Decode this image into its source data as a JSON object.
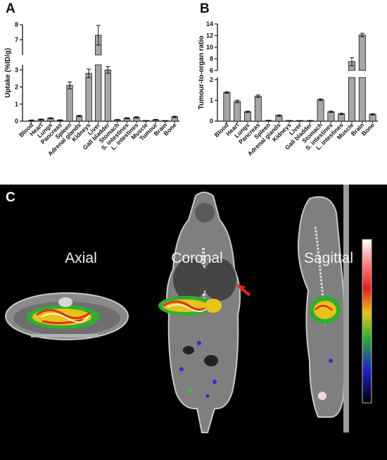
{
  "panels": {
    "a": "A",
    "b": "B",
    "c": "C"
  },
  "views": {
    "axial": "Axial",
    "coronal": "Coronal",
    "sagittal": "Sagittal"
  },
  "chart_data": [
    {
      "type": "bar",
      "panel": "A",
      "title": "",
      "xlabel": "",
      "ylabel": "Uptake (%ID/g)",
      "categories": [
        "Blood",
        "Heart",
        "Lungs",
        "Pancreas",
        "Spleen",
        "Adrenal glands",
        "Kidneys",
        "Liver",
        "Gall bladder",
        "Stomach",
        "S. intestines",
        "L. intestines",
        "Muscle",
        "Tumour",
        "Brain",
        "Bone"
      ],
      "values": [
        0.05,
        0.1,
        0.17,
        0.06,
        2.1,
        0.3,
        2.8,
        7.3,
        3.0,
        0.08,
        0.17,
        0.22,
        0.02,
        0.08,
        0.01,
        0.25
      ],
      "errors": [
        0.02,
        0.03,
        0.03,
        0.02,
        0.2,
        0.04,
        0.25,
        0.65,
        0.2,
        0.02,
        0.03,
        0.04,
        0.01,
        0.02,
        0.01,
        0.04
      ],
      "axis_break": [
        3.5,
        6
      ],
      "ylim": [
        0,
        8
      ],
      "yticks_lower": [
        0,
        1,
        2,
        3
      ],
      "yticks_upper": [
        7,
        8
      ],
      "color": "#a6a6a6"
    },
    {
      "type": "bar",
      "panel": "B",
      "title": "",
      "xlabel": "",
      "ylabel": "Tumour-to-organ ratio",
      "categories": [
        "Blood",
        "Heart",
        "Lungs",
        "Pancreas",
        "Spleen",
        "Adrenal glands",
        "Kidneys",
        "Liver",
        "Gall bladder",
        "Stomach",
        "S. intestines",
        "L. intestines",
        "Muscle",
        "Brain",
        "Bone"
      ],
      "values": [
        1.38,
        0.95,
        0.45,
        1.2,
        0.03,
        0.27,
        0.02,
        0.01,
        0.02,
        1.03,
        0.45,
        0.35,
        7.5,
        12.1,
        0.33
      ],
      "errors": [
        0.04,
        0.06,
        0.03,
        0.06,
        0.01,
        0.03,
        0.01,
        0.005,
        0.01,
        0.04,
        0.03,
        0.03,
        0.7,
        0.3,
        0.03
      ],
      "axis_break": [
        2,
        6
      ],
      "ylim": [
        0,
        14
      ],
      "yticks_lower": [
        0,
        1,
        2
      ],
      "yticks_upper": [
        6,
        8,
        10,
        12,
        14
      ],
      "color": "#a6a6a6"
    }
  ]
}
